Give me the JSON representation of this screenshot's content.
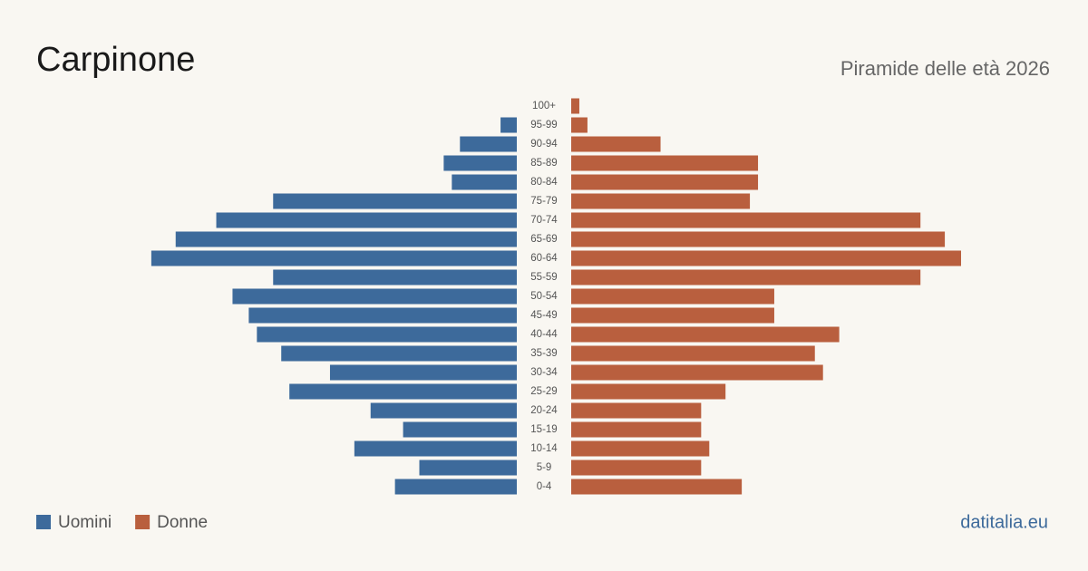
{
  "chart_data": {
    "type": "pyramid",
    "title": "Carpinone",
    "subtitle": "Piramide delle età 2026",
    "source": "datitalia.eu",
    "categories": [
      "100+",
      "95-99",
      "90-94",
      "85-89",
      "80-84",
      "75-79",
      "70-74",
      "65-69",
      "60-64",
      "55-59",
      "50-54",
      "45-49",
      "40-44",
      "35-39",
      "30-34",
      "25-29",
      "20-24",
      "15-19",
      "10-14",
      "5-9",
      "0-4"
    ],
    "series": [
      {
        "name": "Uomini",
        "color": "#3d6a9b",
        "values": [
          0,
          2,
          7,
          9,
          8,
          30,
          37,
          42,
          45,
          30,
          35,
          33,
          32,
          29,
          23,
          28,
          18,
          14,
          20,
          12,
          15
        ]
      },
      {
        "name": "Donne",
        "color": "#b95f3e",
        "values": [
          1,
          2,
          11,
          23,
          23,
          22,
          43,
          46,
          48,
          43,
          25,
          25,
          33,
          30,
          31,
          19,
          16,
          16,
          17,
          16,
          21
        ]
      }
    ]
  }
}
